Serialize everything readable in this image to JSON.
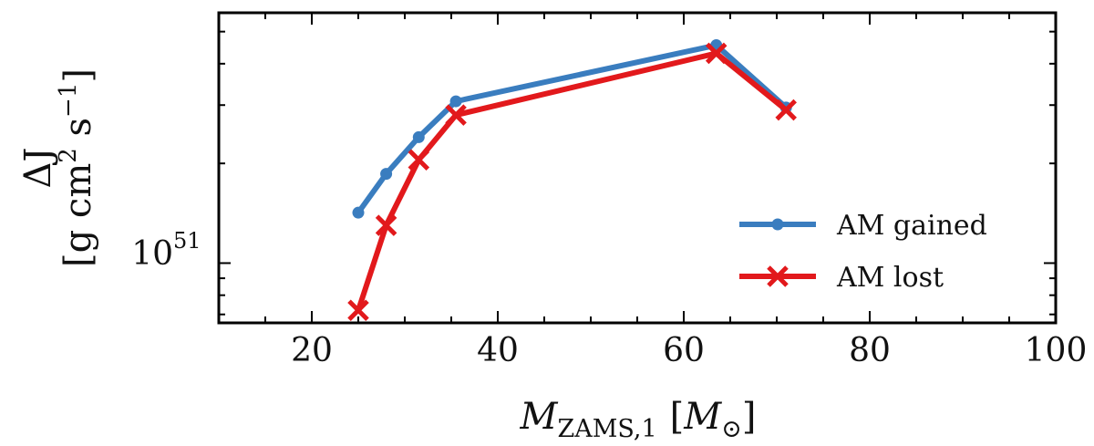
{
  "chart_data": {
    "type": "line",
    "y_scale": "log",
    "xlim": [
      10,
      100
    ],
    "ylim": [
      6.6e+50,
      5.7e+51
    ],
    "x_ticks": [
      20,
      40,
      60,
      80,
      100
    ],
    "x_tick_labels": [
      "20",
      "40",
      "60",
      "80",
      "100"
    ],
    "y_tick_labels": [
      {
        "value": 1e+51,
        "mantissa": "10",
        "exponent": "51"
      }
    ],
    "xlabel": {
      "main": "M",
      "sub": "ZAMS,1",
      "unit_open": "[",
      "unit_sym": "M",
      "unit_sub": "⊙",
      "unit_close": "]"
    },
    "ylabel": {
      "line1": "ΔJ",
      "line2_pre": "[g cm",
      "sup1": "2",
      "line2_mid": " s",
      "sup2": "−1",
      "line2_post": "]"
    },
    "series": [
      {
        "name": "AM gained",
        "color": "#3a7dbf",
        "marker": "circle",
        "x": [
          25.0,
          28.0,
          31.5,
          35.5,
          63.5,
          71.0
        ],
        "y": [
          1.42e+51,
          1.86e+51,
          2.4e+51,
          3.08e+51,
          4.55e+51,
          2.95e+51
        ]
      },
      {
        "name": "AM lost",
        "color": "#e2191c",
        "marker": "x",
        "x": [
          25.0,
          28.0,
          31.5,
          35.5,
          63.5,
          71.0
        ],
        "y": [
          7.2e+50,
          1.3e+51,
          2.05e+51,
          2.8e+51,
          4.3e+51,
          2.9e+51
        ]
      }
    ],
    "legend": {
      "position": "lower-right"
    }
  }
}
